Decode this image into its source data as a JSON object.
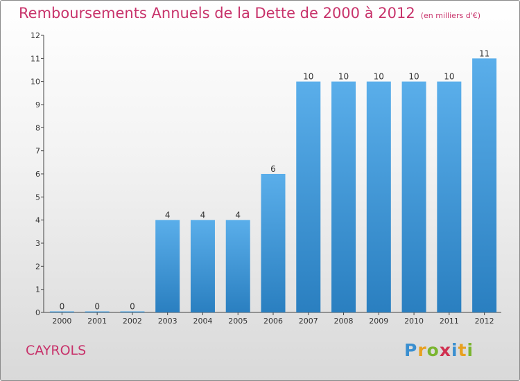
{
  "title": "Remboursements Annuels de la Dette de 2000 à 2012",
  "unit_note": "(en milliers d'€)",
  "commune": "CAYROLS",
  "logo_text": "Proxiti",
  "colors": {
    "title": "#c8336b",
    "bar_top": "#5aaeea",
    "bar_bottom": "#2a7fc0",
    "axis": "#444444"
  },
  "chart_data": {
    "type": "bar",
    "title": "Remboursements Annuels de la Dette de 2000 à 2012",
    "categories": [
      "2000",
      "2001",
      "2002",
      "2003",
      "2004",
      "2005",
      "2006",
      "2007",
      "2008",
      "2009",
      "2010",
      "2011",
      "2012"
    ],
    "values": [
      0,
      0,
      0,
      4,
      4,
      4,
      6,
      10,
      10,
      10,
      10,
      10,
      11
    ],
    "xlabel": "",
    "ylabel": "",
    "ylim": [
      0,
      12
    ],
    "yticks": [
      0,
      1,
      2,
      3,
      4,
      5,
      6,
      7,
      8,
      9,
      10,
      11,
      12
    ],
    "grid": false,
    "legend": "none"
  }
}
